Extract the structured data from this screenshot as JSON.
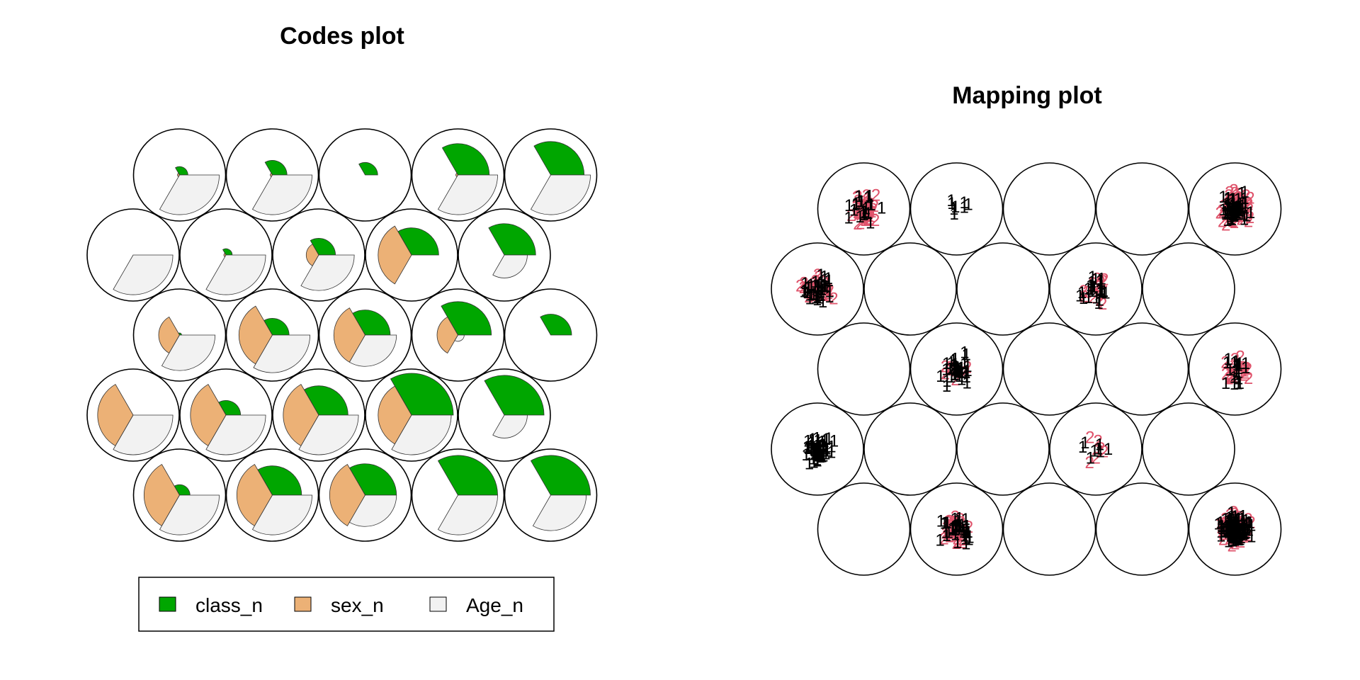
{
  "codes_plot": {
    "title": "Codes plot",
    "legend": [
      {
        "label": "class_n",
        "color": "#00A600"
      },
      {
        "label": "sex_n",
        "color": "#ECB176"
      },
      {
        "label": "Age_n",
        "color": "#F2F2F2"
      }
    ]
  },
  "mapping_plot": {
    "title": "Mapping plot",
    "class_colors": {
      "1": "#000000",
      "2": "#DF536B"
    }
  },
  "chart_data": [
    {
      "type": "segments",
      "title": "Codes plot",
      "grid": {
        "rows": 5,
        "cols": 5,
        "topology": "hexagonal"
      },
      "variables": [
        "class_n",
        "sex_n",
        "Age_n"
      ],
      "codes": [
        [
          [
            0.2,
            0.05,
            0.95
          ],
          [
            0.35,
            0.05,
            0.95
          ],
          [
            0.3,
            0.0,
            0.0
          ],
          [
            0.75,
            0.05,
            0.95
          ],
          [
            0.8,
            0.0,
            0.95
          ]
        ],
        [
          [
            0.0,
            0.0,
            0.95
          ],
          [
            0.15,
            0.05,
            0.95
          ],
          [
            0.4,
            0.3,
            0.85
          ],
          [
            0.65,
            0.8,
            0.0
          ],
          [
            0.75,
            0.0,
            0.55
          ]
        ],
        [
          [
            0.05,
            0.5,
            0.85
          ],
          [
            0.4,
            0.8,
            0.9
          ],
          [
            0.6,
            0.75,
            0.75
          ],
          [
            0.8,
            0.5,
            0.15
          ],
          [
            0.5,
            0.0,
            0.0
          ]
        ],
        [
          [
            0.0,
            0.85,
            0.95
          ],
          [
            0.35,
            0.85,
            0.95
          ],
          [
            0.7,
            0.85,
            0.95
          ],
          [
            1.0,
            0.8,
            0.95
          ],
          [
            0.95,
            0.0,
            0.55
          ]
        ],
        [
          [
            0.25,
            0.85,
            0.95
          ],
          [
            0.7,
            0.85,
            0.95
          ],
          [
            0.75,
            0.85,
            0.75
          ],
          [
            0.95,
            0.0,
            0.95
          ],
          [
            0.95,
            0.0,
            0.85
          ]
        ]
      ]
    },
    {
      "type": "scatter",
      "title": "Mapping plot",
      "grid": {
        "rows": 5,
        "cols": 5,
        "topology": "hexagonal"
      },
      "series": [
        {
          "name": "1",
          "color": "#000000"
        },
        {
          "name": "2",
          "color": "#DF536B"
        }
      ],
      "unit_counts": [
        [
          {
            "1": 20,
            "2": 55
          },
          {
            "1": 8,
            "2": 0
          },
          {
            "1": 0,
            "2": 0
          },
          {
            "1": 0,
            "2": 0
          },
          {
            "1": 60,
            "2": 80
          }
        ],
        [
          {
            "1": 40,
            "2": 40
          },
          {
            "1": 0,
            "2": 0
          },
          {
            "1": 0,
            "2": 0
          },
          {
            "1": 25,
            "2": 15
          },
          {
            "1": 0,
            "2": 0
          }
        ],
        [
          {
            "1": 0,
            "2": 0
          },
          {
            "1": 40,
            "2": 8
          },
          {
            "1": 0,
            "2": 0
          },
          {
            "1": 0,
            "2": 0
          },
          {
            "1": 20,
            "2": 25
          }
        ],
        [
          {
            "1": 60,
            "2": 0
          },
          {
            "1": 0,
            "2": 0
          },
          {
            "1": 0,
            "2": 0
          },
          {
            "1": 8,
            "2": 6
          },
          {
            "1": 0,
            "2": 0
          }
        ],
        [
          {
            "1": 0,
            "2": 0
          },
          {
            "1": 40,
            "2": 45
          },
          {
            "1": 0,
            "2": 0
          },
          {
            "1": 0,
            "2": 0
          },
          {
            "1": 130,
            "2": 90
          }
        ]
      ]
    }
  ]
}
